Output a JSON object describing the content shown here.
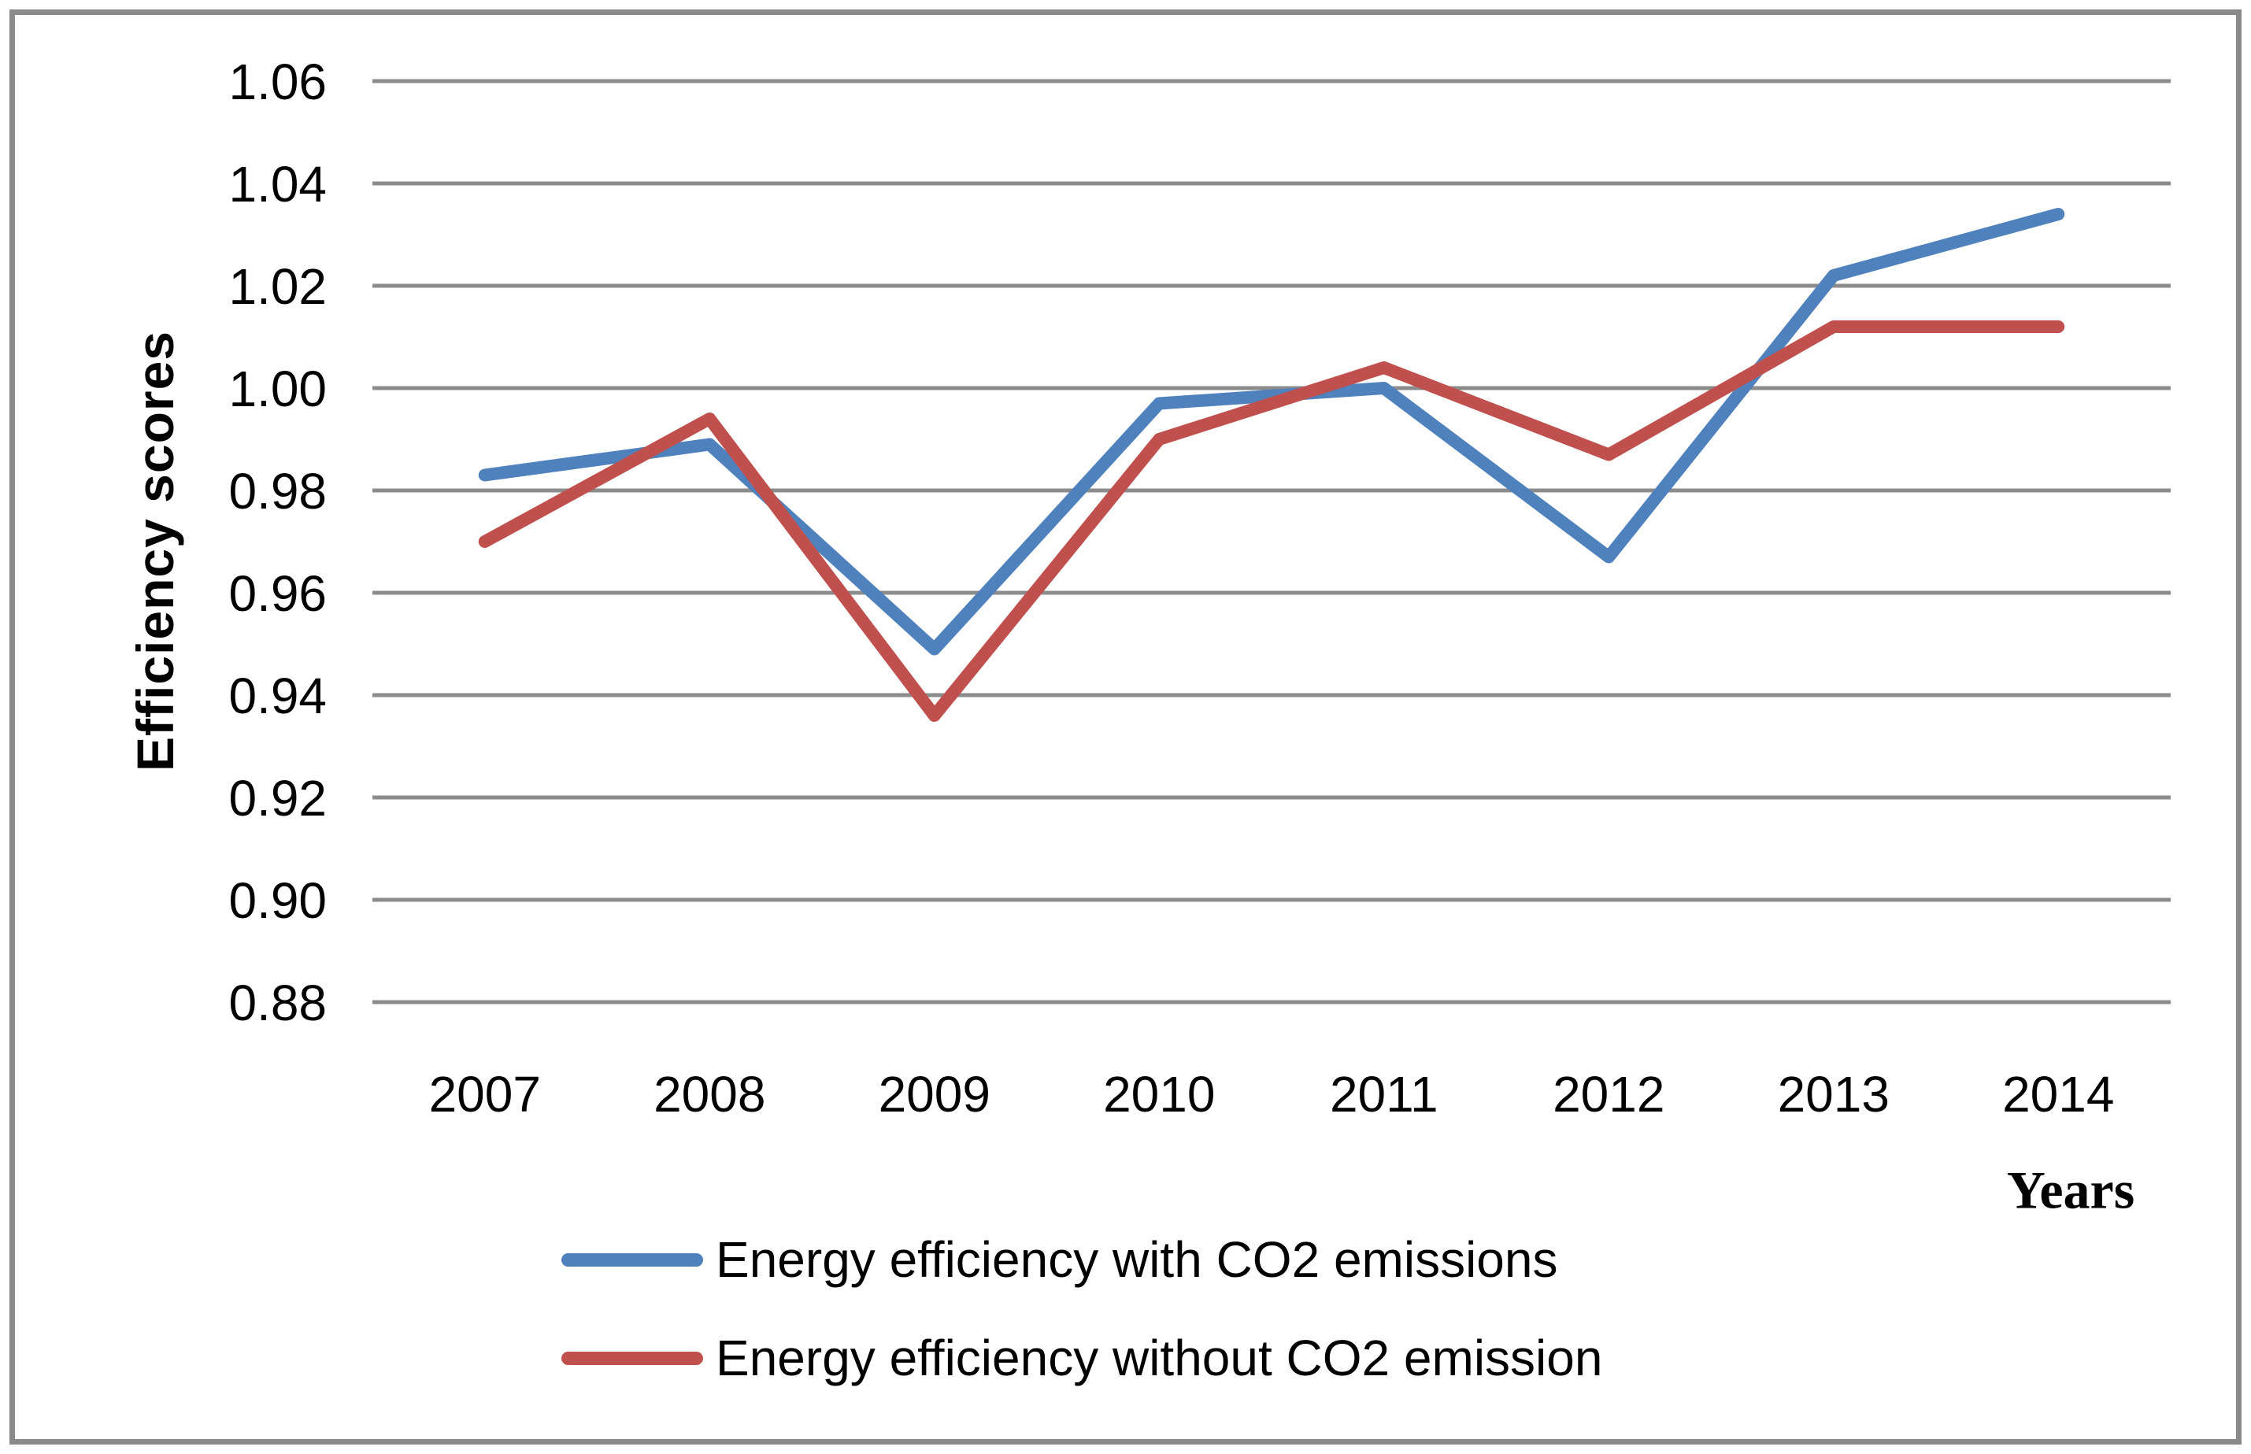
{
  "chart_data": {
    "type": "line",
    "title": "",
    "categories": [
      "2007",
      "2008",
      "2009",
      "2010",
      "2011",
      "2012",
      "2013",
      "2014"
    ],
    "series": [
      {
        "name": "Energy efficiency with CO2 emissions",
        "color": "#4F81BD",
        "values": [
          0.983,
          0.989,
          0.949,
          0.997,
          1.0,
          0.967,
          1.022,
          1.034
        ]
      },
      {
        "name": "Energy efficiency without CO2 emission",
        "color": "#C0504D",
        "values": [
          0.97,
          0.994,
          0.936,
          0.99,
          1.004,
          0.987,
          1.012,
          1.012
        ]
      }
    ],
    "xlabel": "Years",
    "ylabel": "Efficiency scores",
    "ylim": [
      0.88,
      1.06
    ],
    "y_tick_step": 0.02,
    "y_tick_labels": [
      "1.06",
      "1.04",
      "1.02",
      "1.00",
      "0.98",
      "0.96",
      "0.94",
      "0.92",
      "0.90",
      "0.88"
    ],
    "grid": "horizontal",
    "legend_position": "bottom",
    "gridline_color": "#8C8C8C",
    "frame_border_color": "#8A8A8A",
    "text_color": "#000000"
  }
}
